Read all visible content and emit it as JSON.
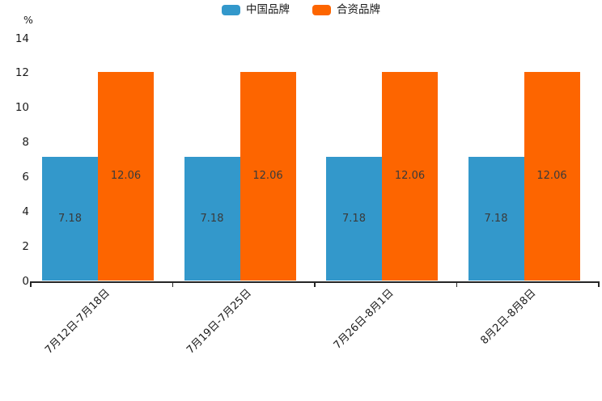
{
  "chart_data": {
    "type": "bar",
    "title": "",
    "ylabel": "%",
    "xlabel": "",
    "ylim": [
      0,
      14
    ],
    "yticks": [
      0,
      2,
      4,
      6,
      8,
      10,
      12,
      14
    ],
    "grid": false,
    "legend_position": "top-center",
    "bar_value_labels": true,
    "categories": [
      "7月12日-7月18日",
      "7月19日-7月25日",
      "7月26日-8月1日",
      "8月2日-8月8日"
    ],
    "series": [
      {
        "name": "中国品牌",
        "color": "#3398cb",
        "values": [
          7.18,
          7.18,
          7.18,
          7.18
        ]
      },
      {
        "name": "合资品牌",
        "color": "#fd6500",
        "values": [
          12.06,
          12.06,
          12.06,
          12.06
        ]
      }
    ],
    "colors": {
      "axis": "#262626",
      "tick_text": "#1a1a1a",
      "value_text": "#3a3a3a"
    }
  }
}
